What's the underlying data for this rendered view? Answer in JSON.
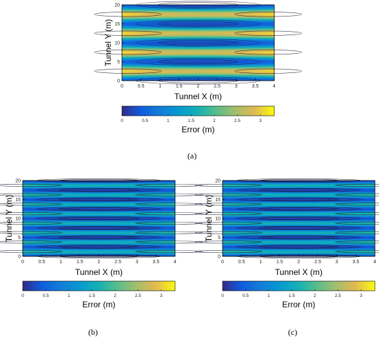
{
  "figure": {
    "caption_labels": [
      "(a)",
      "(b)",
      "(c)"
    ]
  },
  "chart_data": [
    {
      "type": "heatmap",
      "panel": "(a)",
      "title": "",
      "xlabel": "Tunnel X (m)",
      "ylabel": "Tunnel Y (m)",
      "xlim": [
        0,
        4
      ],
      "ylim": [
        0,
        20
      ],
      "xticks": [
        "0",
        "0.5",
        "1",
        "1.5",
        "2",
        "2.5",
        "3",
        "3.5",
        "4"
      ],
      "yticks": [
        "0",
        "5",
        "10",
        "15",
        "20"
      ],
      "colorbar": {
        "label": "Error (m)",
        "range": [
          0,
          3.3
        ],
        "ticks": [
          "0",
          "0.5",
          "1",
          "1.5",
          "2",
          "2.5",
          "3"
        ],
        "colormap": "parula"
      },
      "pattern": {
        "minima_y": [
          0,
          5,
          10,
          15,
          20
        ],
        "maxima_y": [
          2.5,
          7.5,
          12.5,
          17.5
        ],
        "min_value": 0.1,
        "max_value": 3.1,
        "center_x": 2
      },
      "contour_levels": [
        0.5,
        1,
        1.5,
        2,
        2.5
      ]
    },
    {
      "type": "heatmap",
      "panel": "(b)",
      "title": "",
      "xlabel": "Tunnel X (m)",
      "ylabel": "Tunnel Y (m)",
      "xlim": [
        0,
        4
      ],
      "ylim": [
        0,
        20
      ],
      "xticks": [
        "0",
        "0.5",
        "1",
        "1.5",
        "2",
        "2.5",
        "3",
        "3.5",
        "4"
      ],
      "yticks": [
        "0",
        "5",
        "10",
        "15",
        "20"
      ],
      "colorbar": {
        "label": "Error (m)",
        "range": [
          0,
          3.3
        ],
        "ticks": [
          "0",
          "0.5",
          "1",
          "1.5",
          "2",
          "2.5",
          "3"
        ],
        "colormap": "parula"
      },
      "pattern": {
        "minima_y": [
          0,
          2.5,
          5,
          7.5,
          10,
          12.5,
          15,
          17.5,
          20
        ],
        "maxima_y": [
          1.25,
          3.75,
          6.25,
          8.75,
          11.25,
          13.75,
          16.25,
          18.75
        ],
        "min_value": 0.1,
        "max_value": 1.8,
        "center_x": 2
      },
      "contour_levels": [
        0.5,
        0.8,
        1.1,
        1.4
      ]
    },
    {
      "type": "heatmap",
      "panel": "(c)",
      "title": "",
      "xlabel": "Tunnel X (m)",
      "ylabel": "Tunnel Y (m)",
      "xlim": [
        0,
        4
      ],
      "ylim": [
        0,
        20
      ],
      "xticks": [
        "0",
        "0.5",
        "1",
        "1.5",
        "2",
        "2.5",
        "3",
        "3.5",
        "4"
      ],
      "yticks": [
        "0",
        "5",
        "10",
        "15",
        "20"
      ],
      "colorbar": {
        "label": "Error (m)",
        "range": [
          0,
          3.3
        ],
        "ticks": [
          "0",
          "0.5",
          "1",
          "1.5",
          "2",
          "2.5",
          "3"
        ],
        "colormap": "parula"
      },
      "pattern": {
        "minima_y": [
          0,
          2.5,
          5,
          7.5,
          10,
          12.5,
          15,
          17.5,
          20
        ],
        "maxima_y": [
          1.25,
          3.75,
          6.25,
          8.75,
          11.25,
          13.75,
          16.25,
          18.75
        ],
        "min_value": 0.1,
        "max_value": 1.8,
        "center_x": 2
      },
      "contour_levels": [
        0.5,
        0.8,
        1.1,
        1.4
      ]
    }
  ]
}
